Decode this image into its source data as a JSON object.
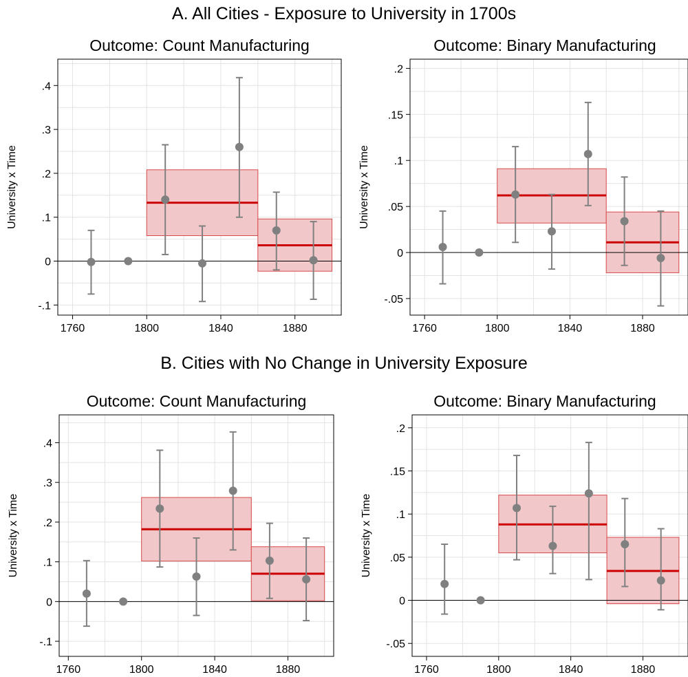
{
  "panel_titles": {
    "a": "A. All Cities - Exposure to University in 1700s",
    "b": "B. Cities with No Change in University Exposure"
  },
  "colors": {
    "point": "#808080",
    "band_fill": "#f2c7c9",
    "band_edge": "#d84a4a",
    "band_line": "#cc0000",
    "grid": "#e3e3e3",
    "zero_line": "#000000"
  },
  "chart_data": [
    {
      "type": "scatter",
      "title": "Outcome: Count Manufacturing",
      "ylabel": "University x Time",
      "xlabel": "",
      "grid": true,
      "xlim": [
        1752,
        1905
      ],
      "ylim": [
        -0.123,
        0.46
      ],
      "xticks": [
        1760,
        1800,
        1840,
        1880
      ],
      "yticks": [
        -0.1,
        0,
        0.1,
        0.2,
        0.3,
        0.4
      ],
      "ytick_labels": [
        "-.1",
        "0",
        ".1",
        ".2",
        ".3",
        ".4"
      ],
      "points": [
        {
          "x": 1770,
          "y": -0.002,
          "lo": -0.075,
          "hi": 0.07
        },
        {
          "x": 1790,
          "y": 0.0,
          "lo": null,
          "hi": null
        },
        {
          "x": 1810,
          "y": 0.14,
          "lo": 0.015,
          "hi": 0.265
        },
        {
          "x": 1830,
          "y": -0.005,
          "lo": -0.092,
          "hi": 0.08
        },
        {
          "x": 1850,
          "y": 0.26,
          "lo": 0.1,
          "hi": 0.418
        },
        {
          "x": 1870,
          "y": 0.07,
          "lo": -0.02,
          "hi": 0.157
        },
        {
          "x": 1890,
          "y": 0.002,
          "lo": -0.087,
          "hi": 0.09
        }
      ],
      "bands": [
        {
          "x0": 1800,
          "x1": 1860,
          "mean": 0.133,
          "lo": 0.058,
          "hi": 0.208
        },
        {
          "x0": 1860,
          "x1": 1900,
          "mean": 0.036,
          "lo": -0.023,
          "hi": 0.096
        }
      ]
    },
    {
      "type": "scatter",
      "title": "Outcome: Binary Manufacturing",
      "ylabel": "University x Time",
      "xlabel": "",
      "grid": true,
      "xlim": [
        1752,
        1905
      ],
      "ylim": [
        -0.068,
        0.21
      ],
      "xticks": [
        1760,
        1800,
        1840,
        1880
      ],
      "yticks": [
        -0.05,
        0,
        0.05,
        0.1,
        0.15,
        0.2
      ],
      "ytick_labels": [
        "-.05",
        "0",
        ".05",
        ".1",
        ".15",
        ".2"
      ],
      "points": [
        {
          "x": 1770,
          "y": 0.006,
          "lo": -0.034,
          "hi": 0.045
        },
        {
          "x": 1790,
          "y": 0.0,
          "lo": null,
          "hi": null
        },
        {
          "x": 1810,
          "y": 0.063,
          "lo": 0.011,
          "hi": 0.115
        },
        {
          "x": 1830,
          "y": 0.023,
          "lo": -0.018,
          "hi": 0.063
        },
        {
          "x": 1850,
          "y": 0.107,
          "lo": 0.051,
          "hi": 0.163
        },
        {
          "x": 1870,
          "y": 0.034,
          "lo": -0.014,
          "hi": 0.082
        },
        {
          "x": 1890,
          "y": -0.006,
          "lo": -0.058,
          "hi": 0.045
        }
      ],
      "bands": [
        {
          "x0": 1800,
          "x1": 1860,
          "mean": 0.062,
          "lo": 0.032,
          "hi": 0.091
        },
        {
          "x0": 1860,
          "x1": 1900,
          "mean": 0.011,
          "lo": -0.022,
          "hi": 0.044
        }
      ]
    },
    {
      "type": "scatter",
      "title": "Outcome: Count Manufacturing",
      "ylabel": "University x Time",
      "xlabel": "",
      "grid": true,
      "xlim": [
        1755,
        1905
      ],
      "ylim": [
        -0.138,
        0.47
      ],
      "xticks": [
        1760,
        1800,
        1840,
        1880
      ],
      "yticks": [
        -0.1,
        0,
        0.1,
        0.2,
        0.3,
        0.4
      ],
      "ytick_labels": [
        "-.1",
        "0",
        ".1",
        ".2",
        ".3",
        ".4"
      ],
      "points": [
        {
          "x": 1770,
          "y": 0.02,
          "lo": -0.062,
          "hi": 0.103
        },
        {
          "x": 1790,
          "y": 0.0,
          "lo": null,
          "hi": null
        },
        {
          "x": 1810,
          "y": 0.234,
          "lo": 0.087,
          "hi": 0.381
        },
        {
          "x": 1830,
          "y": 0.063,
          "lo": -0.035,
          "hi": 0.16
        },
        {
          "x": 1850,
          "y": 0.279,
          "lo": 0.13,
          "hi": 0.427
        },
        {
          "x": 1870,
          "y": 0.103,
          "lo": 0.008,
          "hi": 0.197
        },
        {
          "x": 1890,
          "y": 0.056,
          "lo": -0.048,
          "hi": 0.16
        }
      ],
      "bands": [
        {
          "x0": 1800,
          "x1": 1860,
          "mean": 0.182,
          "lo": 0.102,
          "hi": 0.262
        },
        {
          "x0": 1860,
          "x1": 1900,
          "mean": 0.07,
          "lo": 0.002,
          "hi": 0.138
        }
      ]
    },
    {
      "type": "scatter",
      "title": "Outcome: Binary Manufacturing",
      "ylabel": "University x Time",
      "xlabel": "",
      "grid": true,
      "xlim": [
        1752,
        1905
      ],
      "ylim": [
        -0.065,
        0.215
      ],
      "xticks": [
        1760,
        1800,
        1840,
        1880
      ],
      "yticks": [
        -0.05,
        0,
        0.05,
        0.1,
        0.15,
        0.2
      ],
      "ytick_labels": [
        "-.05",
        "0",
        ".05",
        ".1",
        ".15",
        ".2"
      ],
      "points": [
        {
          "x": 1770,
          "y": 0.019,
          "lo": -0.016,
          "hi": 0.065
        },
        {
          "x": 1790,
          "y": 0.0,
          "lo": null,
          "hi": null
        },
        {
          "x": 1810,
          "y": 0.107,
          "lo": 0.047,
          "hi": 0.168
        },
        {
          "x": 1830,
          "y": 0.063,
          "lo": 0.031,
          "hi": 0.109
        },
        {
          "x": 1850,
          "y": 0.124,
          "lo": 0.024,
          "hi": 0.183
        },
        {
          "x": 1870,
          "y": 0.065,
          "lo": 0.016,
          "hi": 0.118
        },
        {
          "x": 1890,
          "y": 0.023,
          "lo": -0.011,
          "hi": 0.083
        }
      ],
      "bands": [
        {
          "x0": 1800,
          "x1": 1860,
          "mean": 0.088,
          "lo": 0.055,
          "hi": 0.122
        },
        {
          "x0": 1860,
          "x1": 1900,
          "mean": 0.034,
          "lo": -0.004,
          "hi": 0.073
        }
      ]
    }
  ]
}
